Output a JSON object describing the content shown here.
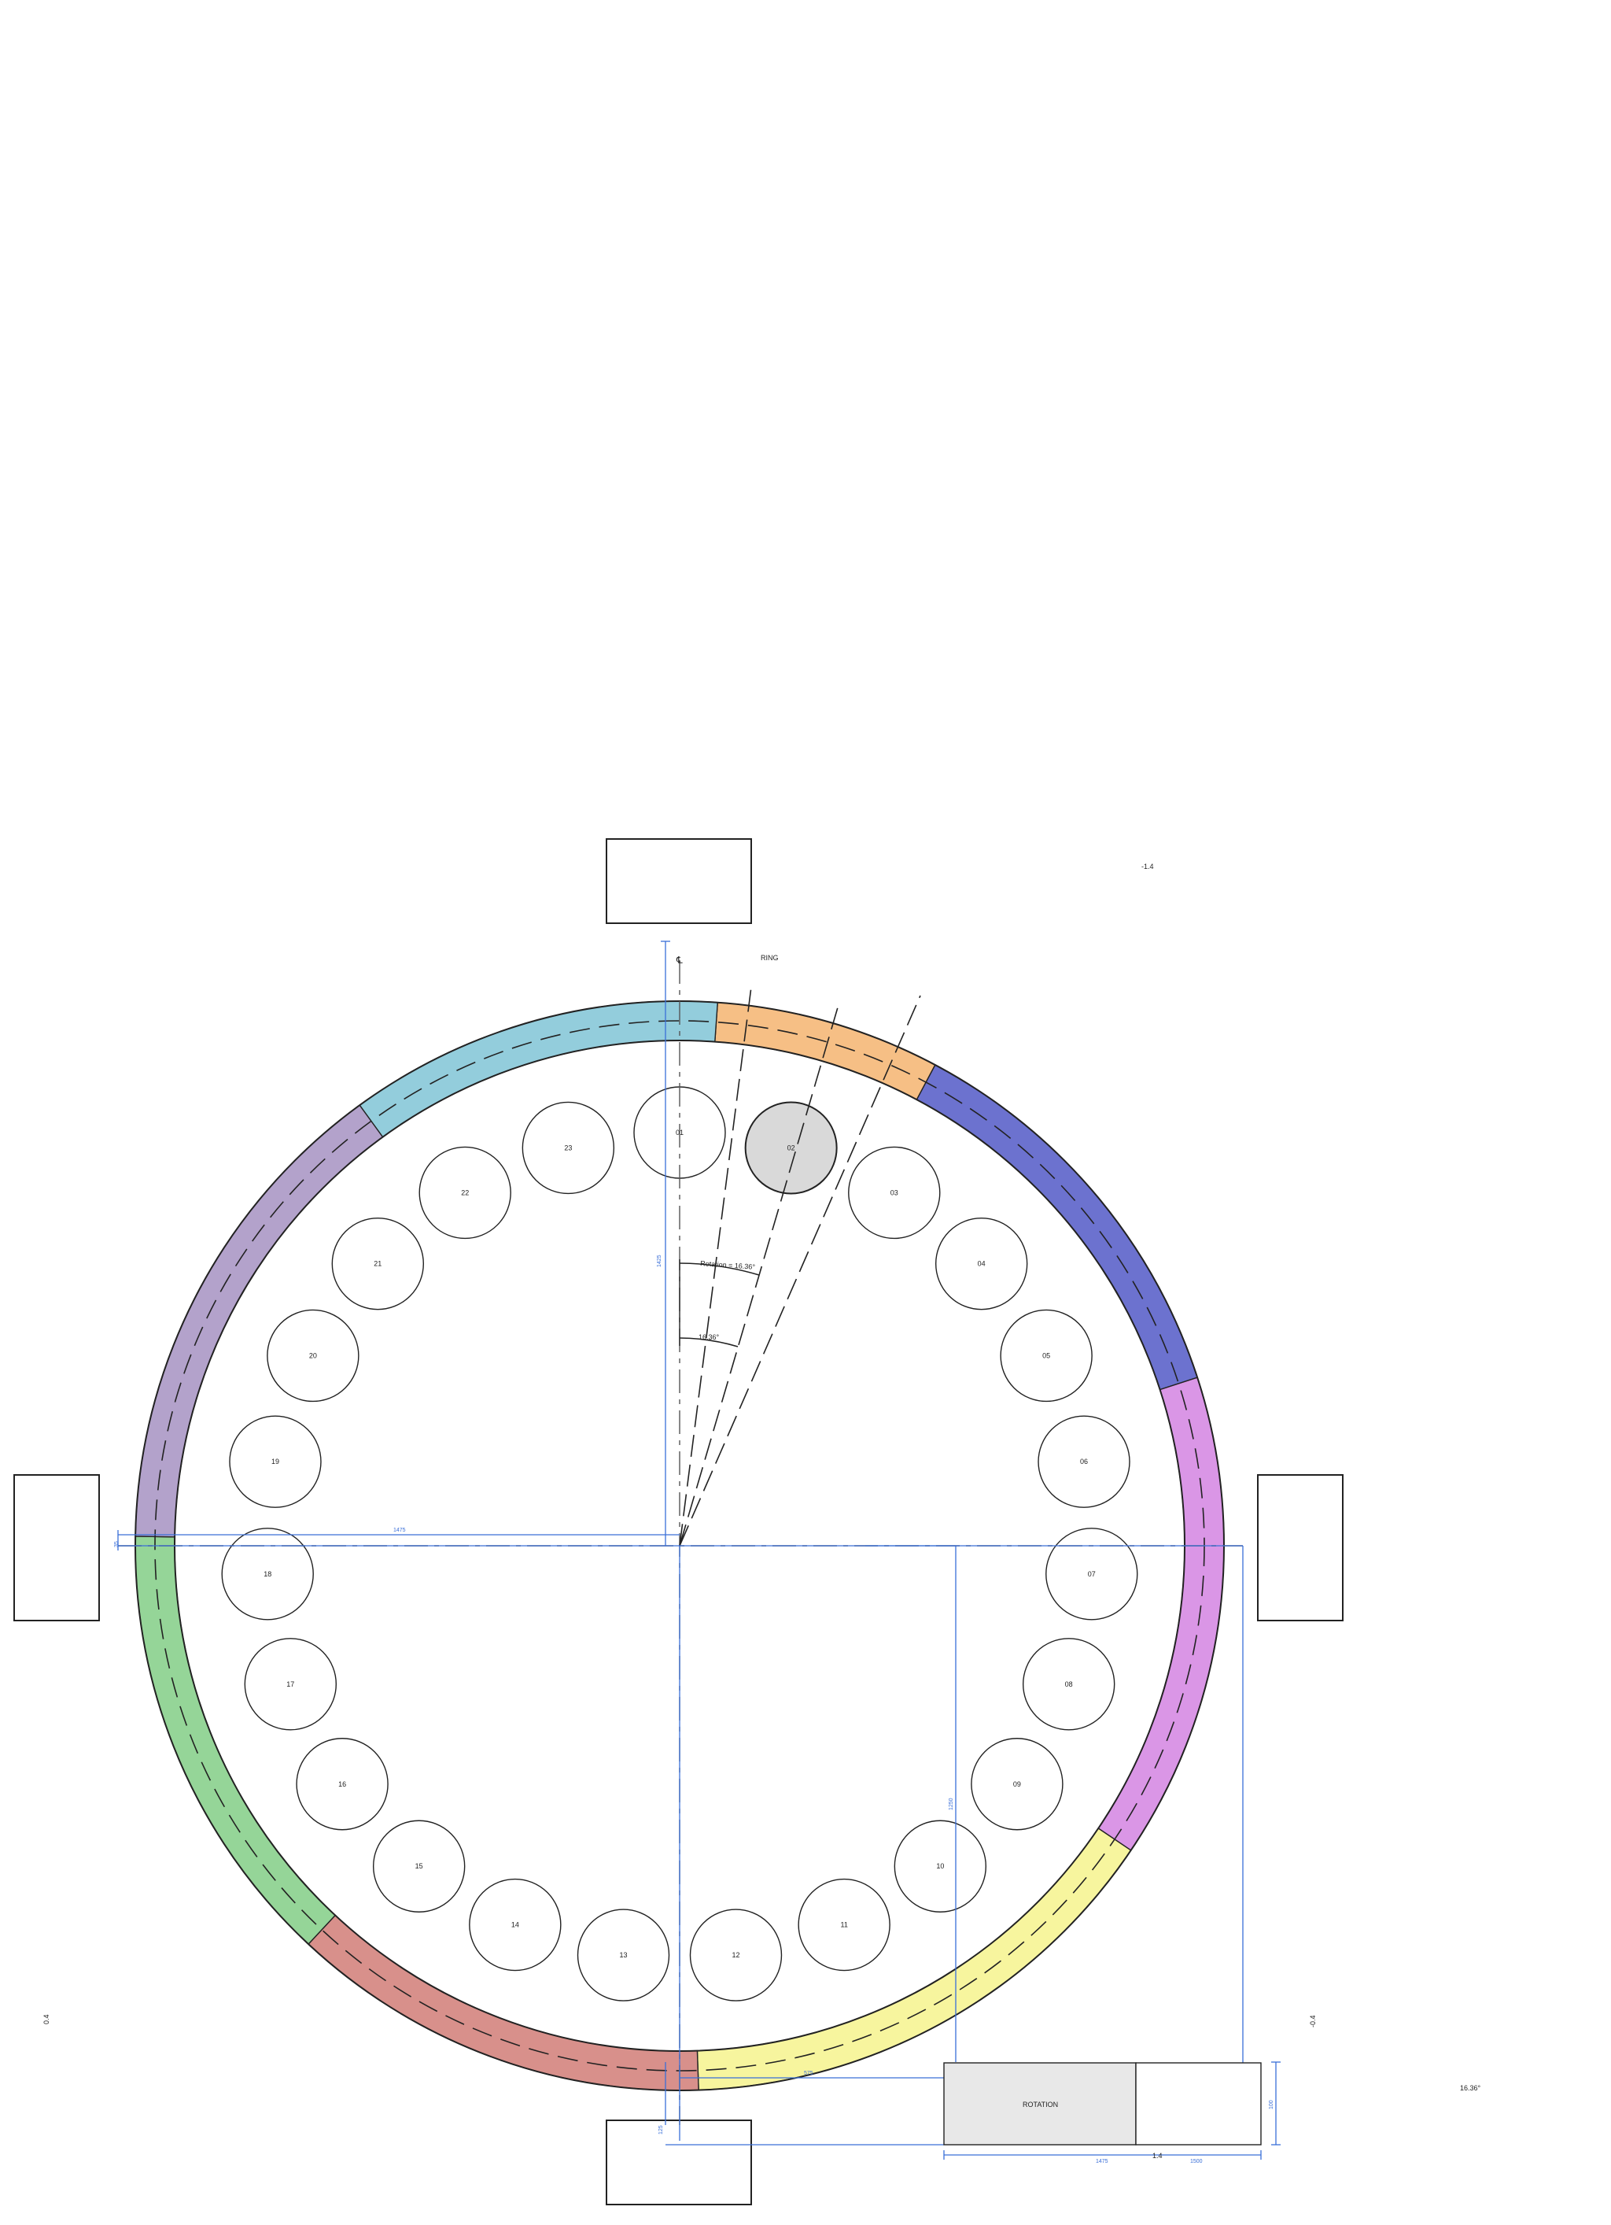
{
  "header_labels": {
    "centerline": "℄",
    "ring": "RING",
    "top_right_note": "-1.4"
  },
  "angle_labels": {
    "outer": "Rotation = 16.36°",
    "inner": "16.36°"
  },
  "pockets": {
    "labels": [
      "01",
      "02",
      "03",
      "04",
      "05",
      "06",
      "07",
      "08",
      "09",
      "10",
      "11",
      "12",
      "13",
      "14",
      "15",
      "16",
      "17",
      "18",
      "19",
      "20",
      "21",
      "22",
      "23"
    ],
    "highlighted": "02"
  },
  "ring_segments": [
    {
      "color": "#f6bf85"
    },
    {
      "color": "#6c72cf"
    },
    {
      "color": "#da96e6"
    },
    {
      "color": "#f7f59e"
    },
    {
      "color": "#d8908b"
    },
    {
      "color": "#95d598"
    },
    {
      "color": "#b3a2cb"
    },
    {
      "color": "#93cddc"
    }
  ],
  "info_box": {
    "rotation_label": "ROTATION",
    "value_label": "1.4"
  },
  "side_notes": {
    "left": "0.4",
    "right": "-0.4",
    "bottom_right_angle": "16.36°"
  },
  "dimensions": {
    "vertical_radius": "1425",
    "horizontal_radius": "1475",
    "left_offset": "35",
    "lower_vertical": "1250",
    "bottom_offset": "575",
    "bottom_small": "125",
    "box_height": "100",
    "box_width_left": "1475",
    "box_width_right": "1500",
    "right_small": "75"
  },
  "colors": {
    "dimension": "#3a6fd8",
    "highlight_pocket": "#d9d9d9",
    "info_box_fill": "#e8e8e8"
  }
}
